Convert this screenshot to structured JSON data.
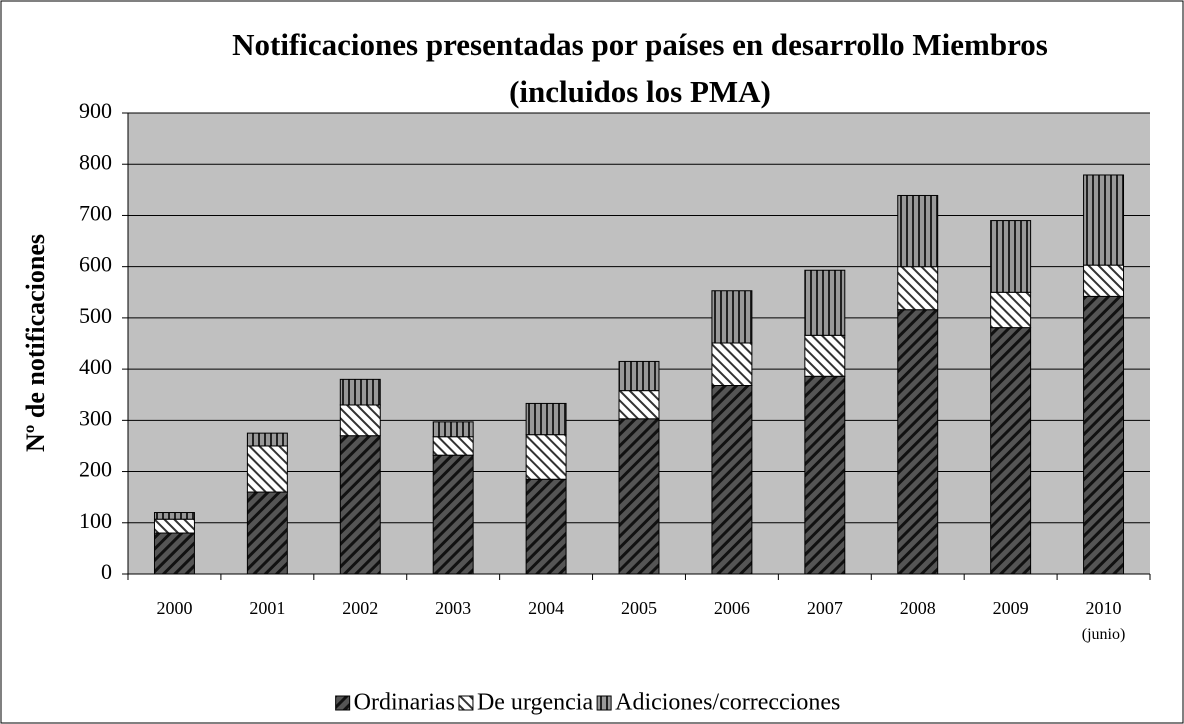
{
  "chart_data": {
    "type": "stacked_bar",
    "title": [
      "Notificaciones presentadas por países en desarrollo Miembros",
      "(incluidos los PMA)"
    ],
    "y_label": "Nº de notificaciones",
    "categories": [
      "2000",
      "2001",
      "2002",
      "2003",
      "2004",
      "2005",
      "2006",
      "2007",
      "2008",
      "2009",
      "2010 (junio)"
    ],
    "series": [
      {
        "name": "Ordinarias",
        "color": "#333333",
        "values": [
          80,
          160,
          270,
          232,
          185,
          303,
          368,
          386,
          516,
          481,
          542
        ]
      },
      {
        "name": "De urgencia",
        "color": "#ffffff",
        "values": [
          27,
          90,
          60,
          36,
          87,
          55,
          83,
          80,
          84,
          69,
          61
        ]
      },
      {
        "name": "Adiciones/correcciones",
        "color": "#808080",
        "values": [
          13,
          25,
          50,
          29,
          61,
          57,
          102,
          127,
          139,
          140,
          176
        ]
      }
    ],
    "ylim": [
      0,
      900
    ],
    "yticks": [
      0,
      100,
      200,
      300,
      400,
      500,
      600,
      700,
      800,
      900
    ],
    "grid": true,
    "legend": "bottom"
  }
}
